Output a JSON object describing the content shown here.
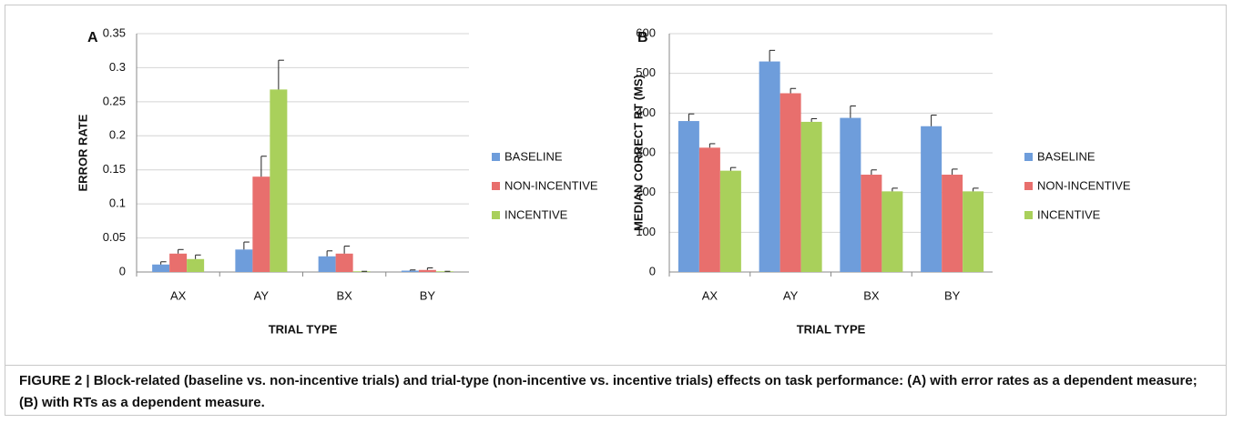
{
  "chart_data": [
    {
      "type": "bar",
      "panel": "A",
      "ylabel": "ERROR RATE",
      "xlabel": "TRIAL TYPE",
      "categories": [
        "AX",
        "AY",
        "BX",
        "BY"
      ],
      "series": [
        {
          "name": "BASELINE",
          "color": "#6e9ddb",
          "values": [
            0.011,
            0.033,
            0.023,
            0.002
          ],
          "errors": [
            0.004,
            0.011,
            0.008,
            0.001
          ]
        },
        {
          "name": "NON-INCENTIVE",
          "color": "#e86f6d",
          "values": [
            0.027,
            0.14,
            0.027,
            0.003
          ],
          "errors": [
            0.006,
            0.03,
            0.011,
            0.003
          ]
        },
        {
          "name": "INCENTIVE",
          "color": "#a9d05b",
          "values": [
            0.019,
            0.268,
            0.001,
            0.001
          ],
          "errors": [
            0.006,
            0.043,
            0,
            0
          ]
        }
      ],
      "ylim": [
        0,
        0.35
      ],
      "yticks": [
        0,
        0.05,
        0.1,
        0.15,
        0.2,
        0.25,
        0.3,
        0.35
      ],
      "grid": true,
      "legend": "right"
    },
    {
      "type": "bar",
      "panel": "B",
      "ylabel": "MEDIAN CORRECT RT (MS)",
      "xlabel": "TRIAL TYPE",
      "categories": [
        "AX",
        "AY",
        "BX",
        "BY"
      ],
      "series": [
        {
          "name": "BASELINE",
          "color": "#6e9ddb",
          "values": [
            380,
            530,
            388,
            367
          ],
          "errors": [
            18,
            28,
            30,
            28
          ]
        },
        {
          "name": "NON-INCENTIVE",
          "color": "#e86f6d",
          "values": [
            313,
            450,
            245,
            245
          ],
          "errors": [
            10,
            12,
            12,
            14
          ]
        },
        {
          "name": "INCENTIVE",
          "color": "#a9d05b",
          "values": [
            255,
            378,
            203,
            203
          ],
          "errors": [
            8,
            8,
            8,
            8
          ]
        }
      ],
      "ylim": [
        0,
        600
      ],
      "yticks": [
        0,
        100,
        200,
        300,
        400,
        500,
        600
      ],
      "grid": true,
      "legend": "right"
    }
  ],
  "caption": "FIGURE 2 | Block-related (baseline vs. non-incentive trials) and trial-type (non-incentive vs. incentive trials) effects on task performance: (A) with error rates as a dependent measure; (B) with RTs as a dependent measure."
}
